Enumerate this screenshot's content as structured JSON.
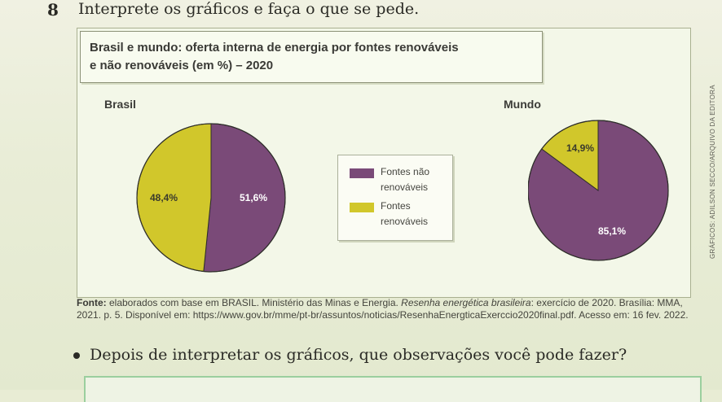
{
  "question": {
    "number": "8",
    "text": "Interprete os gráficos e faça o que se pede."
  },
  "figure": {
    "title_line1": "Brasil e mundo: oferta interna de energia por fontes renováveis",
    "title_line2": "e não renováveis (em %) – 2020",
    "credit": "GRÁFICOS: ADILSON SECCO/ARQUIVO DA EDITORA"
  },
  "chart_data": [
    {
      "type": "pie",
      "title": "Brasil",
      "slices": [
        {
          "label": "Fontes não renováveis",
          "value": 51.6,
          "display": "51,6%",
          "color": "#7a4a78"
        },
        {
          "label": "Fontes renováveis",
          "value": 48.4,
          "display": "48,4%",
          "color": "#d1c72b"
        }
      ]
    },
    {
      "type": "pie",
      "title": "Mundo",
      "slices": [
        {
          "label": "Fontes não renováveis",
          "value": 85.1,
          "display": "85,1%",
          "color": "#7a4a78"
        },
        {
          "label": "Fontes renováveis",
          "value": 14.9,
          "display": "14,9%",
          "color": "#d1c72b"
        }
      ]
    }
  ],
  "legend": {
    "item1_line1": "Fontes não",
    "item1_line2": "renováveis",
    "item2_line1": "Fontes",
    "item2_line2": "renováveis"
  },
  "source": {
    "label": "Fonte:",
    "text_a": " elaborados com base em BRASIL. Ministério das Minas e Energia. ",
    "italic": "Resenha energética brasileira",
    "text_b": ": exercício de 2020. Brasília: MMA, 2021. p. 5. Disponível em: https://www.gov.br/mme/pt-br/assuntos/noticias/ResenhaEnergticaExerccio2020final.pdf. Acesso em: 16 fev. 2022."
  },
  "prompt": {
    "text": "Depois de interpretar os gráficos, que observações você pode fazer?"
  }
}
